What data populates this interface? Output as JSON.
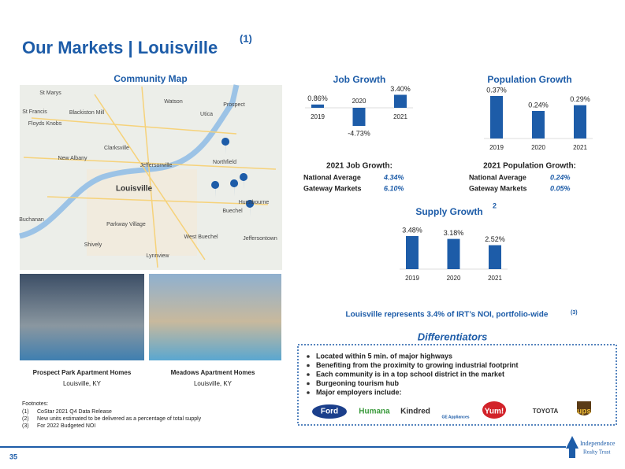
{
  "title": "Our Markets | Louisville",
  "title_note": "(1)",
  "map": {
    "title": "Community Map",
    "labels": [
      "St Marys",
      "Watson",
      "Prospect",
      "St Francis",
      "Blackiston Mill",
      "Utica",
      "Floyds Knobs",
      "Clarksville",
      "New Albany",
      "Jeffersonville",
      "Northfield",
      "Louisville",
      "Hurstbourne",
      "Buechel",
      "Shively",
      "Lynnview",
      "Jeffersontown",
      "Buchanan",
      "Parkway Village",
      "West Buechel"
    ]
  },
  "properties": [
    {
      "name": "Prospect Park Apartment Homes",
      "location": "Louisville, KY"
    },
    {
      "name": "Meadows Apartment Homes",
      "location": "Louisville, KY"
    }
  ],
  "chart_data": [
    {
      "type": "bar",
      "title": "Job Growth",
      "categories": [
        "2019",
        "2020",
        "2021"
      ],
      "values": [
        0.86,
        -4.73,
        3.4
      ],
      "value_labels": [
        "0.86%",
        "-4.73%",
        "3.40%"
      ],
      "color": "#1d5ca8"
    },
    {
      "type": "bar",
      "title": "Population Growth",
      "categories": [
        "2019",
        "2020",
        "2021"
      ],
      "values": [
        0.37,
        0.24,
        0.29
      ],
      "value_labels": [
        "0.37%",
        "0.24%",
        "0.29%"
      ],
      "color": "#1d5ca8"
    },
    {
      "type": "bar",
      "title": "Supply Growth",
      "title_note": "2",
      "categories": [
        "2019",
        "2020",
        "2021"
      ],
      "values": [
        3.48,
        3.18,
        2.52
      ],
      "value_labels": [
        "3.48%",
        "3.18%",
        "2.52%"
      ],
      "color": "#1d5ca8"
    }
  ],
  "stats": [
    {
      "title": "2021 Job Growth:",
      "rows": [
        [
          "National Average",
          "4.34%"
        ],
        [
          "Gateway Markets",
          "6.10%"
        ]
      ]
    },
    {
      "title": "2021 Population Growth:",
      "rows": [
        [
          "National Average",
          "0.24%"
        ],
        [
          "Gateway Markets",
          "0.05%"
        ]
      ]
    }
  ],
  "noi_note": {
    "text": "Louisville represents 3.4% of IRT’s NOI, portfolio-wide",
    "note": "(3)"
  },
  "differentiators": {
    "title": "Differentiators",
    "items": [
      "Located within 5 min. of major highways",
      "Benefiting from the proximity to growing industrial footprint",
      "Each community is in a top school district in the market",
      "Burgeoning tourism hub",
      "Major employers include:"
    ]
  },
  "employers": [
    "Ford",
    "Humana",
    "Kindred",
    "GE Appliances",
    "Yum!",
    "TOYOTA",
    "ups"
  ],
  "footnotes": {
    "title": "Footnotes:",
    "items": [
      [
        "(1)",
        "CoStar 2021 Q4 Data Release"
      ],
      [
        "(2)",
        "New units estimated to be delivered as a percentage of total supply"
      ],
      [
        "(3)",
        "For 2022 Budgeted NOI"
      ]
    ]
  },
  "page_number": "35",
  "logo": [
    "Independence",
    "Realty Trust"
  ]
}
